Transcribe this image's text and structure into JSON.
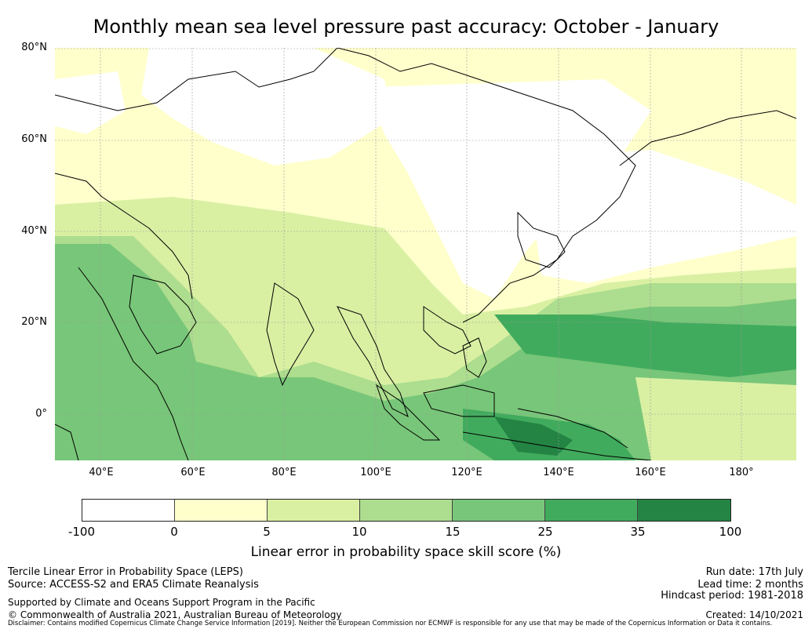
{
  "title": "Monthly mean sea level pressure past accuracy: October - January",
  "map": {
    "lat_labels": [
      "80°N",
      "60°N",
      "40°N",
      "20°N",
      "0°"
    ],
    "lon_labels": [
      "40°E",
      "60°E",
      "80°E",
      "100°E",
      "120°E",
      "140°E",
      "160°E",
      "180°"
    ],
    "lon_range": [
      30,
      192
    ],
    "lat_range": [
      -10,
      80
    ],
    "grid": true,
    "legend_colors": {
      "-100 to 0": "#ffffff",
      "0 to 5": "#ffffcc",
      "5 to 10": "#d9f0a3",
      "10 to 15": "#addd8e",
      "15 to 25": "#78c679",
      "25 to 35": "#41ab5d",
      "35 to 100": "#238443"
    }
  },
  "colorbar": {
    "ticks": [
      "-100",
      "0",
      "5",
      "10",
      "15",
      "25",
      "35",
      "100"
    ],
    "colors": [
      "#ffffff",
      "#ffffcc",
      "#d9f0a3",
      "#addd8e",
      "#78c679",
      "#41ab5d",
      "#238443"
    ],
    "label": "Linear error in probability space skill score (%)"
  },
  "footer": {
    "line1": "Tercile Linear Error in Probability Space (LEPS)",
    "line2": "Source: ACCESS-S2 and ERA5 Climate Reanalysis",
    "line3": "Supported by Climate and Oceans Support Program in the Pacific",
    "line4": "© Commonwealth of Australia 2021, Australian Bureau of Meteorology",
    "run_date": "Run date: 17th July",
    "lead_time": "Lead time: 2 months",
    "hindcast": "Hindcast period: 1981-2018",
    "created": "Created: 14/10/2021",
    "disclaimer": "Disclaimer: Contains modified Copernicus Climate Change Service Information [2019]. Neither the European Commission nor ECMWF is responsible for any use that may be made of the Copernicus Information or Data it contains."
  }
}
